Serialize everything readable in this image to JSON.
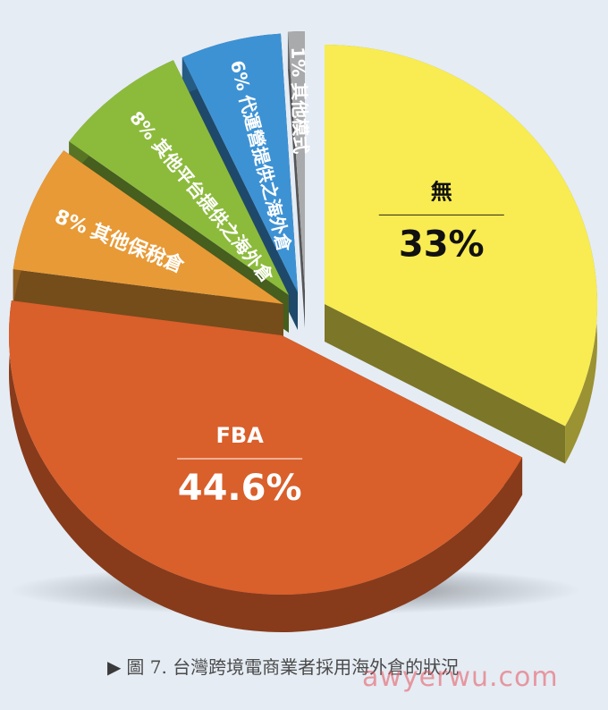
{
  "chart_data": {
    "type": "pie",
    "title": "",
    "slices": [
      {
        "label": "無",
        "value": 33,
        "display": "33%",
        "color": "#f8ec52"
      },
      {
        "label": "FBA",
        "value": 44.6,
        "display": "44.6%",
        "color": "#d95f2b"
      },
      {
        "label": "其他保稅倉",
        "value": 8,
        "display": "8%",
        "color": "#e89a36"
      },
      {
        "label": "其他平台提供之海外倉",
        "value": 8,
        "display": "8%",
        "color": "#8cbb3c"
      },
      {
        "label": "代運營提供之海外倉",
        "value": 6,
        "display": "6%",
        "color": "#3d92d4"
      },
      {
        "label": "其他模式",
        "value": 1,
        "display": "1%",
        "color": "#a9aaac"
      }
    ]
  },
  "caption": {
    "marker": "▶",
    "text": "圖 7. 台灣跨境電商業者採用海外倉的狀況"
  },
  "watermark": "awyerwu.com"
}
